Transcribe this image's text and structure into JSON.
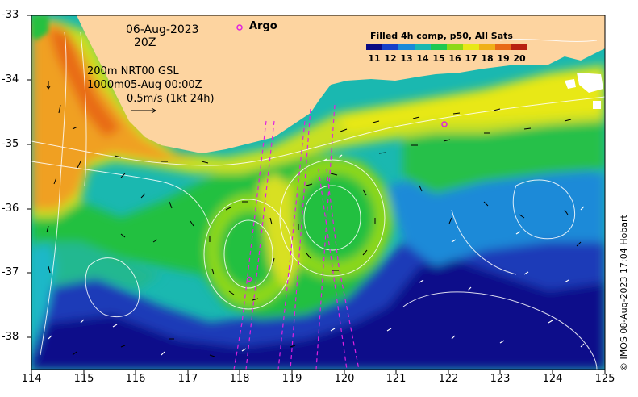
{
  "title": {
    "date": "06-Aug-2023",
    "time": "20Z"
  },
  "info": {
    "line1": "200m  NRT00 GSL",
    "line2": "1000m05-Aug 00:00Z",
    "scale": "0.5m/s (1kt 24h)"
  },
  "legend": {
    "argo_label": "Argo",
    "colorbar_title": "Filled 4h comp, p50, All Sats",
    "colorbar_ticks": [
      "11",
      "12",
      "13",
      "14",
      "15",
      "16",
      "17",
      "18",
      "19",
      "20"
    ],
    "colorbar_colors": [
      "#0a0a82",
      "#1640c8",
      "#1a8ad8",
      "#1ab8b0",
      "#1ec850",
      "#8ed818",
      "#e8e818",
      "#f0b018",
      "#e86a18",
      "#b82010"
    ]
  },
  "axes": {
    "y_ticks": [
      "-33",
      "-34",
      "-35",
      "-36",
      "-37",
      "-38"
    ],
    "x_ticks": [
      "114",
      "115",
      "116",
      "117",
      "118",
      "119",
      "120",
      "121",
      "122",
      "123",
      "124",
      "125"
    ]
  },
  "credit": "© IMOS 08-Aug-2023 17:04 Hobart",
  "colors": {
    "land": "#fdd4a0",
    "argo": "#e020e0"
  }
}
